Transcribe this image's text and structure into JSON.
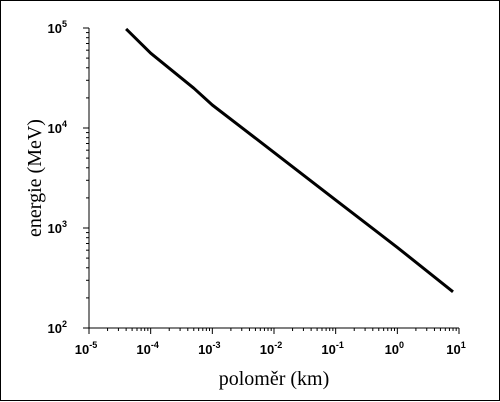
{
  "chart_data": {
    "type": "line",
    "title": "",
    "xlabel": "poloměr (km)",
    "ylabel": "energie (MeV)",
    "xscale": "log",
    "yscale": "log",
    "xlim": [
      1e-05,
      10
    ],
    "ylim": [
      100,
      100000
    ],
    "grid": false,
    "x_ticks": [
      {
        "base": "10",
        "exp": "-5",
        "value": 1e-05
      },
      {
        "base": "10",
        "exp": "-4",
        "value": 0.0001
      },
      {
        "base": "10",
        "exp": "-3",
        "value": 0.001
      },
      {
        "base": "10",
        "exp": "-2",
        "value": 0.01
      },
      {
        "base": "10",
        "exp": "-1",
        "value": 0.1
      },
      {
        "base": "10",
        "exp": "0",
        "value": 1
      },
      {
        "base": "10",
        "exp": "1",
        "value": 10
      }
    ],
    "y_ticks": [
      {
        "base": "10",
        "exp": "2",
        "value": 100
      },
      {
        "base": "10",
        "exp": "3",
        "value": 1000
      },
      {
        "base": "10",
        "exp": "4",
        "value": 10000
      },
      {
        "base": "10",
        "exp": "5",
        "value": 100000
      }
    ],
    "series": [
      {
        "color": "#000000",
        "x": [
          4e-05,
          0.0001,
          0.0005,
          0.001,
          0.01,
          0.1,
          1,
          8
        ],
        "y": [
          98000,
          56000,
          25000,
          17000,
          5700,
          1900,
          640,
          230
        ]
      }
    ]
  }
}
